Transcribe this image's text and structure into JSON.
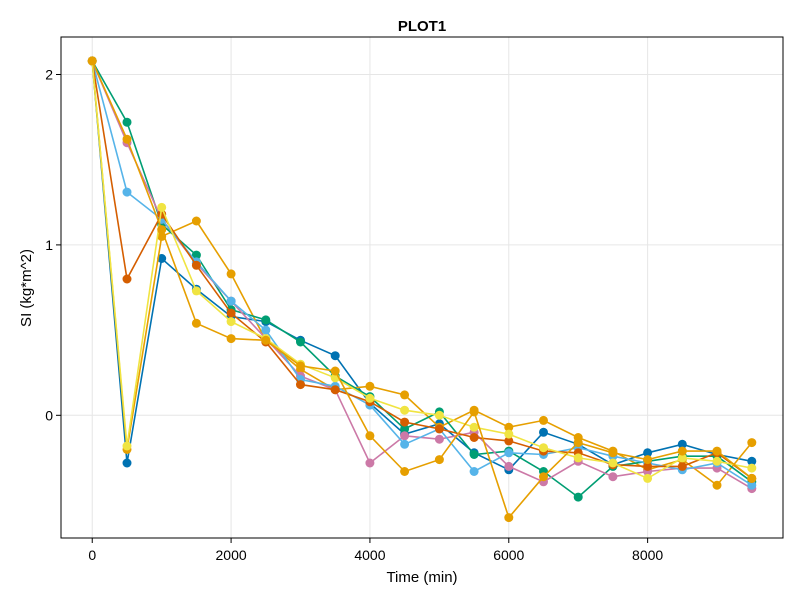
{
  "chart_data": {
    "type": "line",
    "title": "PLOT1",
    "xlabel": "Time (min)",
    "ylabel": "SI (kg*m^2)",
    "xlim": [
      -450,
      9950
    ],
    "ylim": [
      -0.72,
      2.22
    ],
    "xticks": [
      0,
      2000,
      4000,
      6000,
      8000
    ],
    "yticks": [
      0,
      1,
      2
    ],
    "grid": true,
    "x": [
      0,
      500,
      1000,
      1500,
      2000,
      2500,
      3000,
      3500,
      4000,
      4500,
      5000,
      5500,
      6000,
      6500,
      7000,
      7500,
      8000,
      8500,
      9000,
      9500
    ],
    "series": [
      {
        "color": "#0072B2",
        "values": [
          2.08,
          -0.28,
          0.92,
          0.74,
          0.58,
          0.55,
          0.44,
          0.35,
          0.07,
          -0.11,
          -0.05,
          -0.22,
          -0.32,
          -0.1,
          -0.17,
          -0.29,
          -0.22,
          -0.17,
          -0.23,
          -0.27
        ]
      },
      {
        "color": "#E69F00",
        "values": [
          2.08,
          -0.2,
          1.05,
          1.14,
          0.83,
          0.44,
          0.27,
          0.15,
          0.17,
          0.12,
          -0.07,
          0.03,
          -0.07,
          -0.03,
          -0.13,
          -0.21,
          -0.32,
          -0.26,
          -0.41,
          -0.16
        ]
      },
      {
        "color": "#009E73",
        "values": [
          2.08,
          1.72,
          1.12,
          0.94,
          0.62,
          0.56,
          0.43,
          0.23,
          0.11,
          -0.08,
          0.02,
          -0.23,
          -0.21,
          -0.33,
          -0.48,
          -0.3,
          -0.27,
          -0.24,
          -0.24,
          -0.39
        ]
      },
      {
        "color": "#CC79A7",
        "values": [
          2.08,
          1.6,
          1.15,
          0.89,
          0.67,
          0.45,
          0.23,
          0.15,
          -0.28,
          -0.12,
          -0.14,
          -0.1,
          -0.3,
          -0.39,
          -0.27,
          -0.36,
          -0.33,
          -0.31,
          -0.31,
          -0.43
        ]
      },
      {
        "color": "#56B4E9",
        "values": [
          2.08,
          1.31,
          1.15,
          0.9,
          0.67,
          0.5,
          0.21,
          0.17,
          0.06,
          -0.17,
          -0.08,
          -0.33,
          -0.22,
          -0.23,
          -0.19,
          -0.24,
          -0.28,
          -0.32,
          -0.28,
          -0.41
        ]
      },
      {
        "color": "#D55E00",
        "values": [
          2.08,
          0.8,
          1.18,
          0.88,
          0.6,
          0.43,
          0.18,
          0.15,
          0.08,
          -0.04,
          -0.08,
          -0.13,
          -0.15,
          -0.21,
          -0.22,
          -0.29,
          -0.3,
          -0.3,
          -0.22,
          -0.37
        ]
      },
      {
        "color": "#F0E442",
        "values": [
          2.08,
          -0.18,
          1.22,
          0.73,
          0.55,
          0.45,
          0.3,
          0.22,
          0.1,
          0.03,
          0.0,
          -0.07,
          -0.11,
          -0.19,
          -0.25,
          -0.28,
          -0.37,
          -0.25,
          -0.27,
          -0.31
        ]
      },
      {
        "color": "#E69F00",
        "values": [
          2.08,
          1.62,
          1.09,
          0.54,
          0.45,
          0.44,
          0.29,
          0.26,
          -0.12,
          -0.33,
          -0.26,
          0.02,
          -0.6,
          -0.36,
          -0.16,
          -0.22,
          -0.26,
          -0.21,
          -0.21,
          -0.37
        ]
      }
    ]
  }
}
